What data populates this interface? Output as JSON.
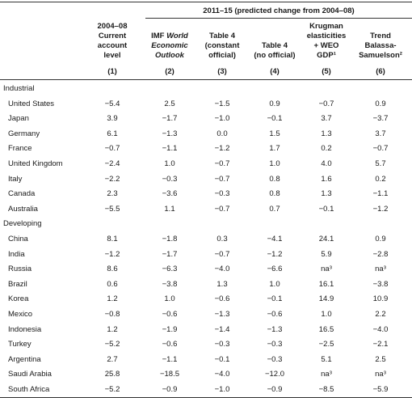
{
  "header": {
    "span_title": "2011–15 (predicted change from 2004–08)",
    "columns": [
      {
        "lines": [
          "2004–08",
          "Current",
          "account",
          "level"
        ],
        "num": "(1)"
      },
      {
        "lines": [
          "IMF World",
          "Economic",
          "Outlook"
        ],
        "num": "(2)"
      },
      {
        "lines": [
          "Table 4",
          "(constant",
          "official)"
        ],
        "num": "(3)"
      },
      {
        "lines": [
          "Table 4",
          "(no official)"
        ],
        "num": "(4)"
      },
      {
        "lines": [
          "Krugman",
          "elasticities",
          "+ WEO",
          "GDP¹"
        ],
        "num": "(5)"
      },
      {
        "lines": [
          "Trend",
          "Balassa-",
          "Samuelson²"
        ],
        "num": "(6)"
      }
    ]
  },
  "sections": [
    {
      "label": "Industrial",
      "rows": [
        {
          "country": "United States",
          "values": [
            "−5.4",
            "2.5",
            "−1.5",
            "0.9",
            "−0.7",
            "0.9"
          ]
        },
        {
          "country": "Japan",
          "values": [
            "3.9",
            "−1.7",
            "−1.0",
            "−0.1",
            "3.7",
            "−3.7"
          ]
        },
        {
          "country": "Germany",
          "values": [
            "6.1",
            "−1.3",
            "0.0",
            "1.5",
            "1.3",
            "3.7"
          ]
        },
        {
          "country": "France",
          "values": [
            "−0.7",
            "−1.1",
            "−1.2",
            "1.7",
            "0.2",
            "−0.7"
          ]
        },
        {
          "country": "United Kingdom",
          "values": [
            "−2.4",
            "1.0",
            "−0.7",
            "1.0",
            "4.0",
            "5.7"
          ]
        },
        {
          "country": "Italy",
          "values": [
            "−2.2",
            "−0.3",
            "−0.7",
            "0.8",
            "1.6",
            "0.2"
          ]
        },
        {
          "country": "Canada",
          "values": [
            "2.3",
            "−3.6",
            "−0.3",
            "0.8",
            "1.3",
            "−1.1"
          ]
        },
        {
          "country": "Australia",
          "values": [
            "−5.5",
            "1.1",
            "−0.7",
            "0.7",
            "−0.1",
            "−1.2"
          ]
        }
      ]
    },
    {
      "label": "Developing",
      "rows": [
        {
          "country": "China",
          "values": [
            "8.1",
            "−1.8",
            "0.3",
            "−4.1",
            "24.1",
            "0.9"
          ]
        },
        {
          "country": "India",
          "values": [
            "−1.2",
            "−1.7",
            "−0.7",
            "−1.2",
            "5.9",
            "−2.8"
          ]
        },
        {
          "country": "Russia",
          "values": [
            "8.6",
            "−6.3",
            "−4.0",
            "−6.6",
            "na³",
            "na³"
          ]
        },
        {
          "country": "Brazil",
          "values": [
            "0.6",
            "−3.8",
            "1.3",
            "1.0",
            "16.1",
            "−3.8"
          ]
        },
        {
          "country": "Korea",
          "values": [
            "1.2",
            "1.0",
            "−0.6",
            "−0.1",
            "14.9",
            "10.9"
          ]
        },
        {
          "country": "Mexico",
          "values": [
            "−0.8",
            "−0.6",
            "−1.3",
            "−0.6",
            "1.0",
            "2.2"
          ]
        },
        {
          "country": "Indonesia",
          "values": [
            "1.2",
            "−1.9",
            "−1.4",
            "−1.3",
            "16.5",
            "−4.0"
          ]
        },
        {
          "country": "Turkey",
          "values": [
            "−5.2",
            "−0.6",
            "−0.3",
            "−0.3",
            "−2.5",
            "−2.1"
          ]
        },
        {
          "country": "Argentina",
          "values": [
            "2.7",
            "−1.1",
            "−0.1",
            "−0.3",
            "5.1",
            "2.5"
          ]
        },
        {
          "country": "Saudi Arabia",
          "values": [
            "25.8",
            "−18.5",
            "−4.0",
            "−12.0",
            "na³",
            "na³"
          ]
        },
        {
          "country": "South Africa",
          "values": [
            "−5.2",
            "−0.9",
            "−1.0",
            "−0.9",
            "−8.5",
            "−5.9"
          ]
        }
      ]
    }
  ]
}
